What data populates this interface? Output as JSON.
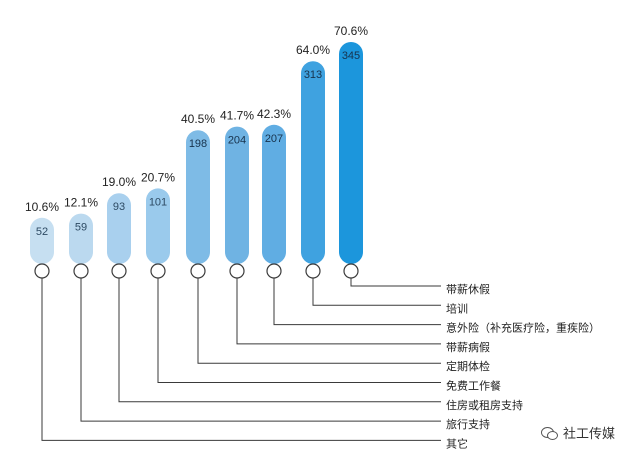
{
  "chart_data": {
    "type": "bar",
    "categories": [
      "其它",
      "旅行支持",
      "住房或租房支持",
      "免费工作餐",
      "定期体检",
      "带薪病假",
      "意外险（补充医疗险，重疾险）",
      "培训",
      "带薪休假"
    ],
    "values": [
      52,
      59,
      93,
      101,
      198,
      204,
      207,
      313,
      345
    ],
    "percent_labels": [
      "10.6%",
      "12.1%",
      "19.0%",
      "20.7%",
      "40.5%",
      "41.7%",
      "42.3%",
      "64.0%",
      "70.6%"
    ],
    "colors": [
      "#c6dff1",
      "#bbd9ef",
      "#a9d0ee",
      "#9acaec",
      "#7ebbe6",
      "#6fb3e3",
      "#60ade3",
      "#3fa2e0",
      "#1c96dc"
    ],
    "legend_order": [
      "带薪休假",
      "培训",
      "意外险（补充医疗险，重疾险）",
      "带薪病假",
      "定期体检",
      "免费工作餐",
      "住房或租房支持",
      "旅行支持",
      "其它"
    ]
  },
  "watermark": "社工传媒"
}
